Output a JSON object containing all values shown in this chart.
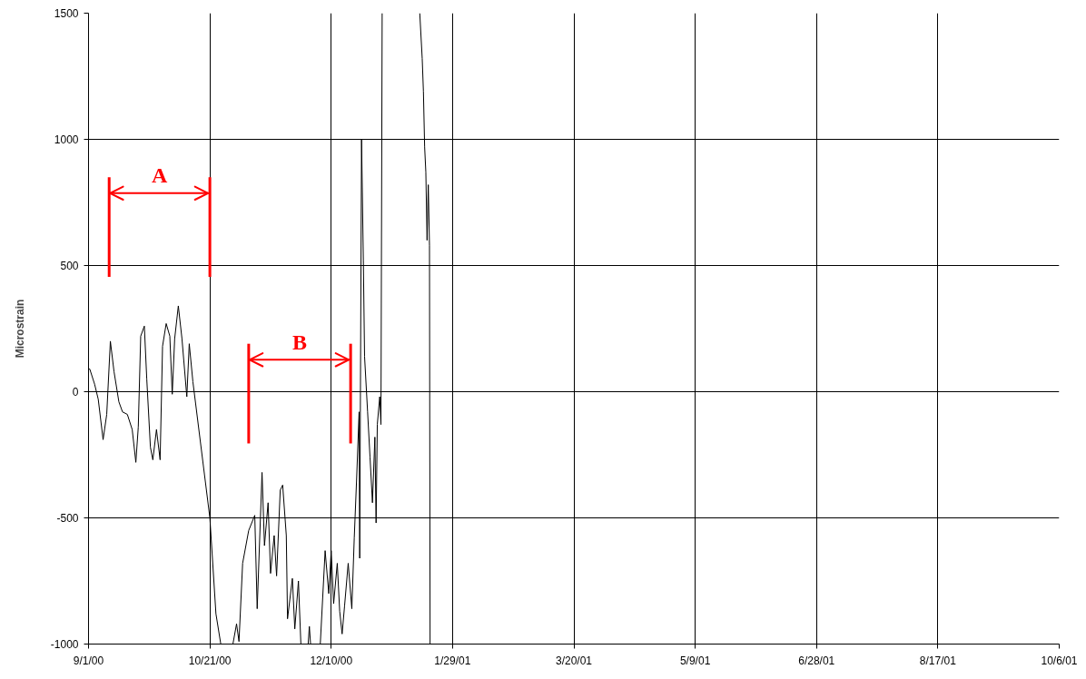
{
  "chart_data": {
    "type": "line",
    "ylabel": "Microstrain",
    "xlim": [
      "2000-09-01",
      "2001-10-06"
    ],
    "ylim": [
      -1000,
      1500
    ],
    "xticks": [
      {
        "value": "2000-09-01",
        "label": "9/1/00"
      },
      {
        "value": "2000-10-21",
        "label": "10/21/00"
      },
      {
        "value": "2000-12-10",
        "label": "12/10/00"
      },
      {
        "value": "2001-01-29",
        "label": "1/29/01"
      },
      {
        "value": "2001-03-20",
        "label": "3/20/01"
      },
      {
        "value": "2001-05-09",
        "label": "5/9/01"
      },
      {
        "value": "2001-06-28",
        "label": "6/28/01"
      },
      {
        "value": "2001-08-17",
        "label": "8/17/01"
      },
      {
        "value": "2001-10-06",
        "label": "10/6/01"
      }
    ],
    "yticks": [
      -1000,
      -500,
      0,
      500,
      1000,
      1500
    ],
    "grid": true,
    "ref_lines": [
      {
        "axis": "x",
        "value": "2000-09-09T12:00",
        "color": "#ff0000"
      },
      {
        "axis": "x",
        "value": "2000-10-21",
        "color": "#ff0000"
      },
      {
        "axis": "x",
        "value": "2000-11-06",
        "color": "#ff0000"
      },
      {
        "axis": "x",
        "value": "2000-12-18",
        "color": "#ff0000"
      }
    ],
    "annotations": [
      "A",
      "B"
    ],
    "series": [
      {
        "color": "#000000",
        "x": [
          "2000-09-01",
          "2000-09-01T12:00",
          "2000-09-03T12:00",
          "2000-09-05",
          "2000-09-07",
          "2000-09-08T12:00",
          "2000-09-10",
          "2000-09-11T12:00",
          "2000-09-13T12:00",
          "2000-09-15",
          "2000-09-17",
          "2000-09-19",
          "2000-09-20T12:00",
          "2000-09-21T12:00",
          "2000-09-22T12:00",
          "2000-09-24",
          "2000-09-25",
          "2000-09-26T12:00",
          "2000-09-27T12:00",
          "2000-09-29",
          "2000-09-30T12:00",
          "2000-10-01T12:00",
          "2000-10-03",
          "2000-10-04T12:00",
          "2000-10-05T12:00",
          "2000-10-06T12:00",
          "2000-10-08",
          "2000-10-09T12:00",
          "2000-10-11T12:00",
          "2000-10-12T12:00",
          "2000-10-14",
          "2000-10-21",
          "2000-10-23T12:00",
          "2000-10-25T12:00",
          "2000-10-28",
          "2000-10-30T12:00",
          "2000-11-01",
          "2000-11-02",
          "2000-11-03T12:00",
          "2000-11-06",
          "2000-11-08T12:00",
          "2000-11-09T12:00",
          "2000-11-11T12:00",
          "2000-11-12T12:00",
          "2000-11-14",
          "2000-11-15",
          "2000-11-16T12:00",
          "2000-11-17T12:00",
          "2000-11-19",
          "2000-11-20",
          "2000-11-21T12:00",
          "2000-11-22",
          "2000-11-24",
          "2000-11-25",
          "2000-11-26T12:00",
          "2000-11-27T12:00",
          "2000-11-29",
          "2000-11-30T12:00",
          "2000-12-01",
          "2000-12-01T12:00",
          "2000-12-03",
          "2000-12-05T12:00",
          "2000-12-07T12:00",
          "2000-12-09",
          "2000-12-10",
          "2000-12-11",
          "2000-12-12T12:00",
          "2000-12-13T12:00",
          "2000-12-14T12:00",
          "2000-12-15T12:00",
          "2000-12-17",
          "2000-12-18T12:00",
          "2000-12-19T12:00",
          "2000-12-20T12:00",
          "2000-12-21T12:00",
          "2000-12-21T18:00",
          "2000-12-22T12:00",
          "2000-12-23T06:00",
          "2000-12-23T18:00",
          "2000-12-25",
          "2000-12-26",
          "2000-12-27",
          "2000-12-28",
          "2000-12-28T12:00",
          "2000-12-29",
          "2000-12-30",
          "2000-12-30T12:00",
          "2000-12-31",
          "2001-01-08",
          "2001-01-15T12:00",
          "2001-01-16T12:00",
          "2001-01-17",
          "2001-01-17T12:00",
          "2001-01-18",
          "2001-01-18T12:00",
          "2001-01-19",
          "2001-01-19T12:00",
          "2001-01-19T18:00"
        ],
        "values": [
          90,
          90,
          30,
          -30,
          -190,
          -90,
          200,
          80,
          -40,
          -80,
          -90,
          -150,
          -280,
          -140,
          220,
          260,
          50,
          -220,
          -270,
          -150,
          -270,
          180,
          270,
          220,
          -10,
          210,
          340,
          210,
          -20,
          190,
          40,
          -500,
          -880,
          -1000,
          null,
          -1000,
          -920,
          -990,
          -680,
          -550,
          -490,
          -860,
          -320,
          -610,
          -440,
          -720,
          -570,
          -730,
          -390,
          -370,
          -570,
          -900,
          -740,
          -940,
          -750,
          -1000,
          null,
          -1000,
          -930,
          -1000,
          null,
          -1000,
          -630,
          -800,
          -630,
          -840,
          -680,
          -870,
          -960,
          -850,
          -680,
          -860,
          -580,
          -340,
          -80,
          -660,
          1000,
          520,
          140,
          -80,
          -260,
          -440,
          -180,
          -520,
          -130,
          -20,
          -130,
          1500,
          null,
          1500,
          1320,
          1190,
          970,
          870,
          600,
          820,
          580,
          -1000
        ]
      }
    ]
  }
}
